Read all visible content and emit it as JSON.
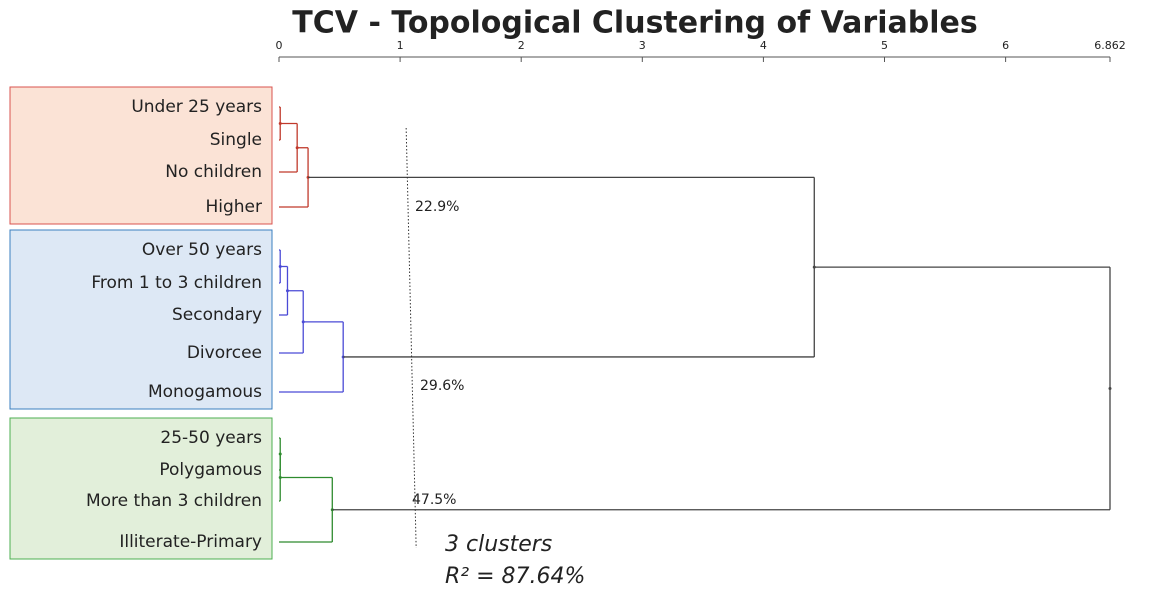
{
  "chart_data": {
    "type": "dendrogram",
    "title": "TCV - Topological Clustering of Variables",
    "xlim": [
      0,
      6.862
    ],
    "xticks": [
      0,
      1,
      2,
      3,
      4,
      5,
      6,
      6.862
    ],
    "leaves": [
      "Under 25 years",
      "Single",
      "No children",
      "Higher",
      "Over 50 years",
      "From 1 to 3 children",
      "Secondary",
      "Divorcee",
      "Monogamous",
      "25-50 years",
      "Polygamous",
      "More than 3 children",
      "Illiterate-Primary"
    ],
    "merges": [
      {
        "children": [
          0,
          1
        ],
        "height": 0.01
      },
      {
        "children": [
          13,
          2
        ],
        "height": 0.15
      },
      {
        "children": [
          14,
          3
        ],
        "height": 0.24
      },
      {
        "children": [
          4,
          5
        ],
        "height": 0.01
      },
      {
        "children": [
          16,
          6
        ],
        "height": 0.07
      },
      {
        "children": [
          17,
          7
        ],
        "height": 0.2
      },
      {
        "children": [
          18,
          8
        ],
        "height": 0.53
      },
      {
        "children": [
          9,
          10
        ],
        "height": 0.01
      },
      {
        "children": [
          20,
          11
        ],
        "height": 0.01
      },
      {
        "children": [
          21,
          12
        ],
        "height": 0.44
      },
      {
        "children": [
          15,
          19
        ],
        "height": 4.42
      },
      {
        "children": [
          23,
          22
        ],
        "height": 6.862
      }
    ],
    "clusters": [
      {
        "leaves": [
          0,
          1,
          2,
          3
        ],
        "color": "#c0392b",
        "fill": "#fbe3d6",
        "border": "#d9534f",
        "label": "22.9%"
      },
      {
        "leaves": [
          4,
          5,
          6,
          7,
          8
        ],
        "color": "#4a4ad6",
        "fill": "#dde8f5",
        "border": "#3a7fc0",
        "label": "29.6%"
      },
      {
        "leaves": [
          9,
          10,
          11,
          12
        ],
        "color": "#2e8b2e",
        "fill": "#e2efda",
        "border": "#4caf50",
        "label": "47.5%"
      }
    ],
    "cut": 1.05,
    "annotations": [
      "3 clusters",
      "R² = 87.64%"
    ]
  }
}
